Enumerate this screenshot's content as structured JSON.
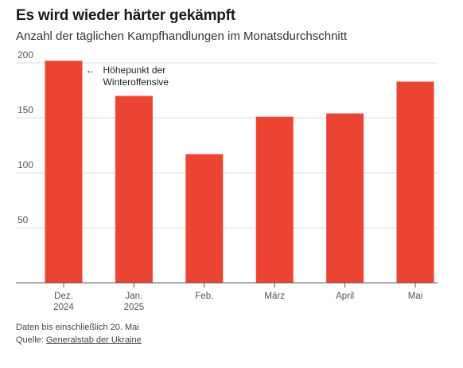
{
  "title": "Es wird wieder härter gekämpft",
  "subtitle": "Anzahl der täglichen Kampfhandlungen im Monatsdurchschnitt",
  "footer": {
    "note": "Daten bis einschließlich 20. Mai",
    "source_prefix": "Quelle: ",
    "source_link": "Generalstab der Ukraine"
  },
  "chart_data": {
    "type": "bar",
    "categories": [
      [
        "Dez.",
        "2024"
      ],
      [
        "Jan.",
        "2025"
      ],
      [
        "Feb."
      ],
      [
        "März"
      ],
      [
        "April"
      ],
      [
        "Mai"
      ]
    ],
    "values": [
      202,
      170,
      117,
      151,
      154,
      183
    ],
    "ylim": [
      0,
      200
    ],
    "yticks": [
      50,
      100,
      150,
      200
    ],
    "grid": true,
    "bar_color": "#ec4433",
    "annotation": {
      "category_index": 0,
      "arrow": "←",
      "lines": [
        "Höhepunkt der",
        "Winteroffensive"
      ]
    }
  }
}
